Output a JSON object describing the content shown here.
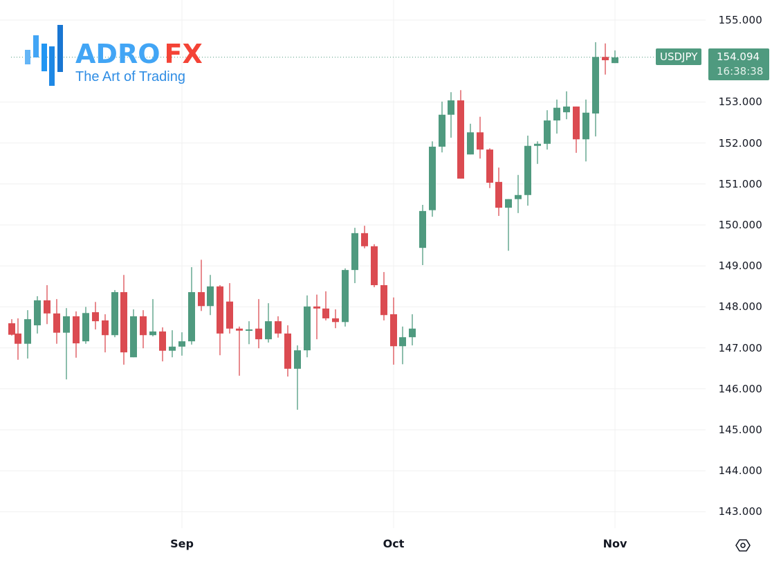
{
  "instrument": {
    "symbol": "USDJPY",
    "last_price": "154.094",
    "countdown": "16:38:38"
  },
  "logo": {
    "brand_part1": "ADRO",
    "brand_part2": "FX",
    "tagline": "The Art of Trading"
  },
  "colors": {
    "up": "#4f9a7f",
    "down": "#db4b51",
    "grid": "#f0f0f0",
    "label_bg": "#4f9a7f"
  },
  "icons": {
    "settings": "gear-hexagon-icon"
  },
  "chart_data": {
    "type": "candlestick",
    "title": "USDJPY",
    "xlabel": "",
    "ylabel": "",
    "ylim": [
      142.5,
      155.3
    ],
    "y_ticks": [
      "155.000",
      "153.000",
      "152.000",
      "151.000",
      "150.000",
      "149.000",
      "148.000",
      "147.000",
      "146.000",
      "145.000",
      "144.000",
      "143.000"
    ],
    "x_ticks": [
      {
        "label": "Sep",
        "x": 263
      },
      {
        "label": "Oct",
        "x": 569
      },
      {
        "label": "Nov",
        "x": 889
      }
    ],
    "grid": true,
    "current_price": 154.094,
    "candles": [
      {
        "x": 17,
        "o": 147.6,
        "h": 147.7,
        "l": 147.3,
        "c": 147.32
      },
      {
        "x": 26,
        "o": 147.35,
        "h": 147.72,
        "l": 146.71,
        "c": 147.1
      },
      {
        "x": 40,
        "o": 147.1,
        "h": 147.92,
        "l": 146.74,
        "c": 147.7
      },
      {
        "x": 54,
        "o": 147.55,
        "h": 148.26,
        "l": 147.35,
        "c": 148.16
      },
      {
        "x": 68,
        "o": 148.16,
        "h": 148.53,
        "l": 147.58,
        "c": 147.84
      },
      {
        "x": 82,
        "o": 147.84,
        "h": 148.19,
        "l": 147.1,
        "c": 147.37
      },
      {
        "x": 96,
        "o": 147.37,
        "h": 147.97,
        "l": 146.23,
        "c": 147.77
      },
      {
        "x": 110,
        "o": 147.77,
        "h": 147.89,
        "l": 146.76,
        "c": 147.11
      },
      {
        "x": 124,
        "o": 147.16,
        "h": 148.0,
        "l": 147.1,
        "c": 147.85
      },
      {
        "x": 138,
        "o": 147.87,
        "h": 148.12,
        "l": 147.45,
        "c": 147.65
      },
      {
        "x": 152,
        "o": 147.67,
        "h": 147.82,
        "l": 146.89,
        "c": 147.31
      },
      {
        "x": 166,
        "o": 147.31,
        "h": 148.41,
        "l": 147.26,
        "c": 148.36
      },
      {
        "x": 179,
        "o": 148.36,
        "h": 148.78,
        "l": 146.59,
        "c": 146.89
      },
      {
        "x": 193,
        "o": 146.77,
        "h": 147.94,
        "l": 146.77,
        "c": 147.77
      },
      {
        "x": 207,
        "o": 147.77,
        "h": 147.92,
        "l": 146.99,
        "c": 147.31
      },
      {
        "x": 221,
        "o": 147.31,
        "h": 148.19,
        "l": 147.28,
        "c": 147.4
      },
      {
        "x": 235,
        "o": 147.4,
        "h": 147.5,
        "l": 146.67,
        "c": 146.93
      },
      {
        "x": 249,
        "o": 146.93,
        "h": 147.43,
        "l": 146.77,
        "c": 147.03
      },
      {
        "x": 263,
        "o": 147.03,
        "h": 147.38,
        "l": 146.81,
        "c": 147.16
      },
      {
        "x": 277,
        "o": 147.16,
        "h": 148.97,
        "l": 147.08,
        "c": 148.36
      },
      {
        "x": 291,
        "o": 148.36,
        "h": 149.15,
        "l": 147.9,
        "c": 148.02
      },
      {
        "x": 304,
        "o": 148.02,
        "h": 148.78,
        "l": 147.8,
        "c": 148.5
      },
      {
        "x": 318,
        "o": 148.5,
        "h": 148.53,
        "l": 146.82,
        "c": 147.35
      },
      {
        "x": 332,
        "o": 148.13,
        "h": 148.58,
        "l": 147.35,
        "c": 147.47
      },
      {
        "x": 346,
        "o": 147.47,
        "h": 147.52,
        "l": 146.32,
        "c": 147.42
      },
      {
        "x": 360,
        "o": 147.42,
        "h": 147.65,
        "l": 147.09,
        "c": 147.45
      },
      {
        "x": 374,
        "o": 147.47,
        "h": 148.19,
        "l": 146.99,
        "c": 147.21
      },
      {
        "x": 388,
        "o": 147.21,
        "h": 148.09,
        "l": 147.13,
        "c": 147.65
      },
      {
        "x": 402,
        "o": 147.65,
        "h": 147.77,
        "l": 147.25,
        "c": 147.35
      },
      {
        "x": 416,
        "o": 147.35,
        "h": 147.55,
        "l": 146.3,
        "c": 146.49
      },
      {
        "x": 430,
        "o": 146.49,
        "h": 147.06,
        "l": 145.49,
        "c": 146.94
      },
      {
        "x": 444,
        "o": 146.94,
        "h": 148.28,
        "l": 146.77,
        "c": 148.01
      },
      {
        "x": 458,
        "o": 148.01,
        "h": 148.3,
        "l": 147.21,
        "c": 147.96
      },
      {
        "x": 471,
        "o": 147.96,
        "h": 148.38,
        "l": 147.67,
        "c": 147.72
      },
      {
        "x": 485,
        "o": 147.72,
        "h": 147.94,
        "l": 147.48,
        "c": 147.63
      },
      {
        "x": 499,
        "o": 147.63,
        "h": 148.94,
        "l": 147.52,
        "c": 148.9
      },
      {
        "x": 513,
        "o": 148.9,
        "h": 149.93,
        "l": 148.58,
        "c": 149.8
      },
      {
        "x": 527,
        "o": 149.8,
        "h": 149.98,
        "l": 149.43,
        "c": 149.48
      },
      {
        "x": 541,
        "o": 149.48,
        "h": 149.53,
        "l": 148.48,
        "c": 148.53
      },
      {
        "x": 555,
        "o": 148.53,
        "h": 148.85,
        "l": 147.67,
        "c": 147.8
      },
      {
        "x": 569,
        "o": 147.82,
        "h": 148.23,
        "l": 146.59,
        "c": 147.04
      },
      {
        "x": 582,
        "o": 147.04,
        "h": 147.52,
        "l": 146.6,
        "c": 147.26
      },
      {
        "x": 596,
        "o": 147.26,
        "h": 147.82,
        "l": 147.06,
        "c": 147.47
      },
      {
        "x": 611,
        "o": 149.44,
        "h": 150.49,
        "l": 149.02,
        "c": 150.34
      },
      {
        "x": 625,
        "o": 150.36,
        "h": 152.04,
        "l": 150.2,
        "c": 151.91
      },
      {
        "x": 639,
        "o": 151.91,
        "h": 153.01,
        "l": 151.77,
        "c": 152.69
      },
      {
        "x": 652,
        "o": 152.69,
        "h": 153.24,
        "l": 152.13,
        "c": 153.04
      },
      {
        "x": 666,
        "o": 153.04,
        "h": 153.29,
        "l": 151.13,
        "c": 151.13
      },
      {
        "x": 680,
        "o": 151.72,
        "h": 152.47,
        "l": 151.72,
        "c": 152.26
      },
      {
        "x": 694,
        "o": 152.26,
        "h": 152.64,
        "l": 151.62,
        "c": 151.84
      },
      {
        "x": 708,
        "o": 151.84,
        "h": 151.87,
        "l": 150.9,
        "c": 151.03
      },
      {
        "x": 721,
        "o": 151.05,
        "h": 151.4,
        "l": 150.22,
        "c": 150.42
      },
      {
        "x": 735,
        "o": 150.42,
        "h": 150.63,
        "l": 149.37,
        "c": 150.63
      },
      {
        "x": 749,
        "o": 150.63,
        "h": 151.22,
        "l": 150.29,
        "c": 150.73
      },
      {
        "x": 763,
        "o": 150.73,
        "h": 152.18,
        "l": 150.47,
        "c": 151.93
      },
      {
        "x": 777,
        "o": 151.93,
        "h": 152.04,
        "l": 151.49,
        "c": 151.98
      },
      {
        "x": 791,
        "o": 151.98,
        "h": 152.8,
        "l": 151.84,
        "c": 152.55
      },
      {
        "x": 805,
        "o": 152.55,
        "h": 153.06,
        "l": 152.23,
        "c": 152.86
      },
      {
        "x": 819,
        "o": 152.75,
        "h": 153.26,
        "l": 152.58,
        "c": 152.89
      },
      {
        "x": 833,
        "o": 152.89,
        "h": 152.89,
        "l": 151.76,
        "c": 152.09
      },
      {
        "x": 847,
        "o": 152.09,
        "h": 153.06,
        "l": 151.55,
        "c": 152.74
      },
      {
        "x": 861,
        "o": 152.72,
        "h": 154.46,
        "l": 152.16,
        "c": 154.1
      },
      {
        "x": 875,
        "o": 154.1,
        "h": 154.43,
        "l": 153.67,
        "c": 154.02
      },
      {
        "x": 889,
        "o": 153.95,
        "h": 154.26,
        "l": 153.95,
        "c": 154.09
      }
    ]
  }
}
